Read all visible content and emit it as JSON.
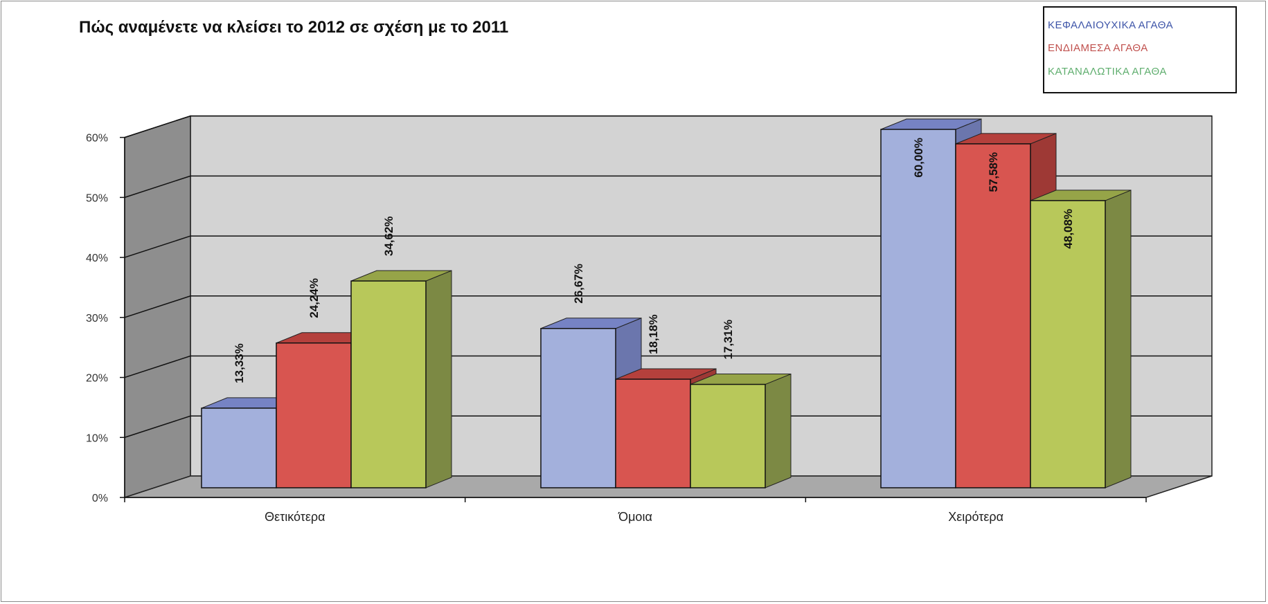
{
  "chart_data": {
    "type": "bar",
    "title": "Πώς αναμένετε να κλείσει το 2012 σε σχέση με το 2011",
    "categories": [
      "Θετικότερα",
      "Όμοια",
      "Χειρότερα"
    ],
    "series": [
      {
        "name": "ΚΕΦΑΛΑΙΟΥΧΙΚΑ ΑΓΑΘΑ",
        "values": [
          13.33,
          26.67,
          60.0
        ],
        "labels": [
          "13,33%",
          "26,67%",
          "60,00%"
        ]
      },
      {
        "name": "ΕΝΔΙΑΜΕΣΑ ΑΓΑΘΑ",
        "values": [
          24.24,
          18.18,
          57.58
        ],
        "labels": [
          "24,24%",
          "18,18%",
          "57,58%"
        ]
      },
      {
        "name": "ΚΑΤΑΝΑΛΩΤΙΚΑ ΑΓΑΘΑ",
        "values": [
          34.62,
          17.31,
          48.08
        ],
        "labels": [
          "34,62%",
          "17,31%",
          "48,08%"
        ]
      }
    ],
    "yticks": [
      "0%",
      "10%",
      "20%",
      "30%",
      "40%",
      "50%",
      "60%"
    ],
    "ylim": [
      0,
      60
    ],
    "xlabel": "",
    "ylabel": "",
    "grid": true,
    "legend_position": "top-right",
    "style": "3d-clustered-column"
  },
  "colors": {
    "series_front": [
      "#a3b0dc",
      "#d85550",
      "#b8c85a"
    ],
    "series_top": [
      "#7683c4",
      "#b5403c",
      "#96a448"
    ],
    "series_side": [
      "#6b76ad",
      "#9e3935",
      "#7c8944"
    ],
    "legend_text": [
      "#3d54a8",
      "#c0504d",
      "#5fae6e"
    ],
    "back_wall": "#d3d3d3",
    "side_wall": "#8e8e8e",
    "floor": "#a9a9a9"
  }
}
